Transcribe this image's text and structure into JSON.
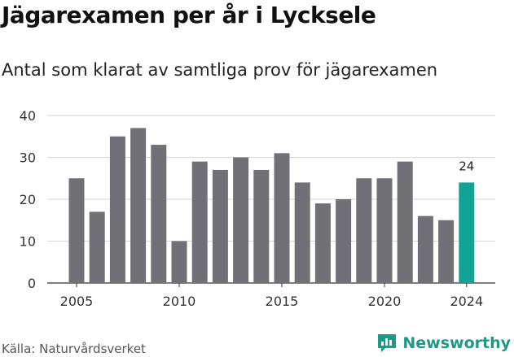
{
  "header": {
    "title": "Jägarexamen per år i Lycksele",
    "subtitle": "Antal som klarat av samtliga prov för jägarexamen"
  },
  "footer": {
    "source": "Källa: Naturvårdsverket",
    "brand": "Newsworthy",
    "brand_icon": "bar-chart-speech-bubble-icon"
  },
  "colors": {
    "bar": "#717076",
    "highlight": "#12a397",
    "grid": "#d6d6d6",
    "brand": "#1b9a8a"
  },
  "chart_data": {
    "type": "bar",
    "x": [
      2005,
      2006,
      2007,
      2008,
      2009,
      2010,
      2011,
      2012,
      2013,
      2014,
      2015,
      2016,
      2017,
      2018,
      2019,
      2020,
      2021,
      2022,
      2023,
      2024
    ],
    "values": [
      25,
      17,
      35,
      37,
      33,
      10,
      29,
      27,
      30,
      27,
      31,
      24,
      19,
      20,
      25,
      25,
      29,
      16,
      15,
      24
    ],
    "highlight_x": 2024,
    "data_labels": [
      {
        "x": 2024,
        "text": "24"
      }
    ],
    "xticks": [
      "2005",
      "2010",
      "2015",
      "2020",
      "2024"
    ],
    "yticks": [
      0,
      10,
      20,
      30,
      40
    ],
    "ylim": [
      0,
      40
    ],
    "grid": "horizontal"
  }
}
